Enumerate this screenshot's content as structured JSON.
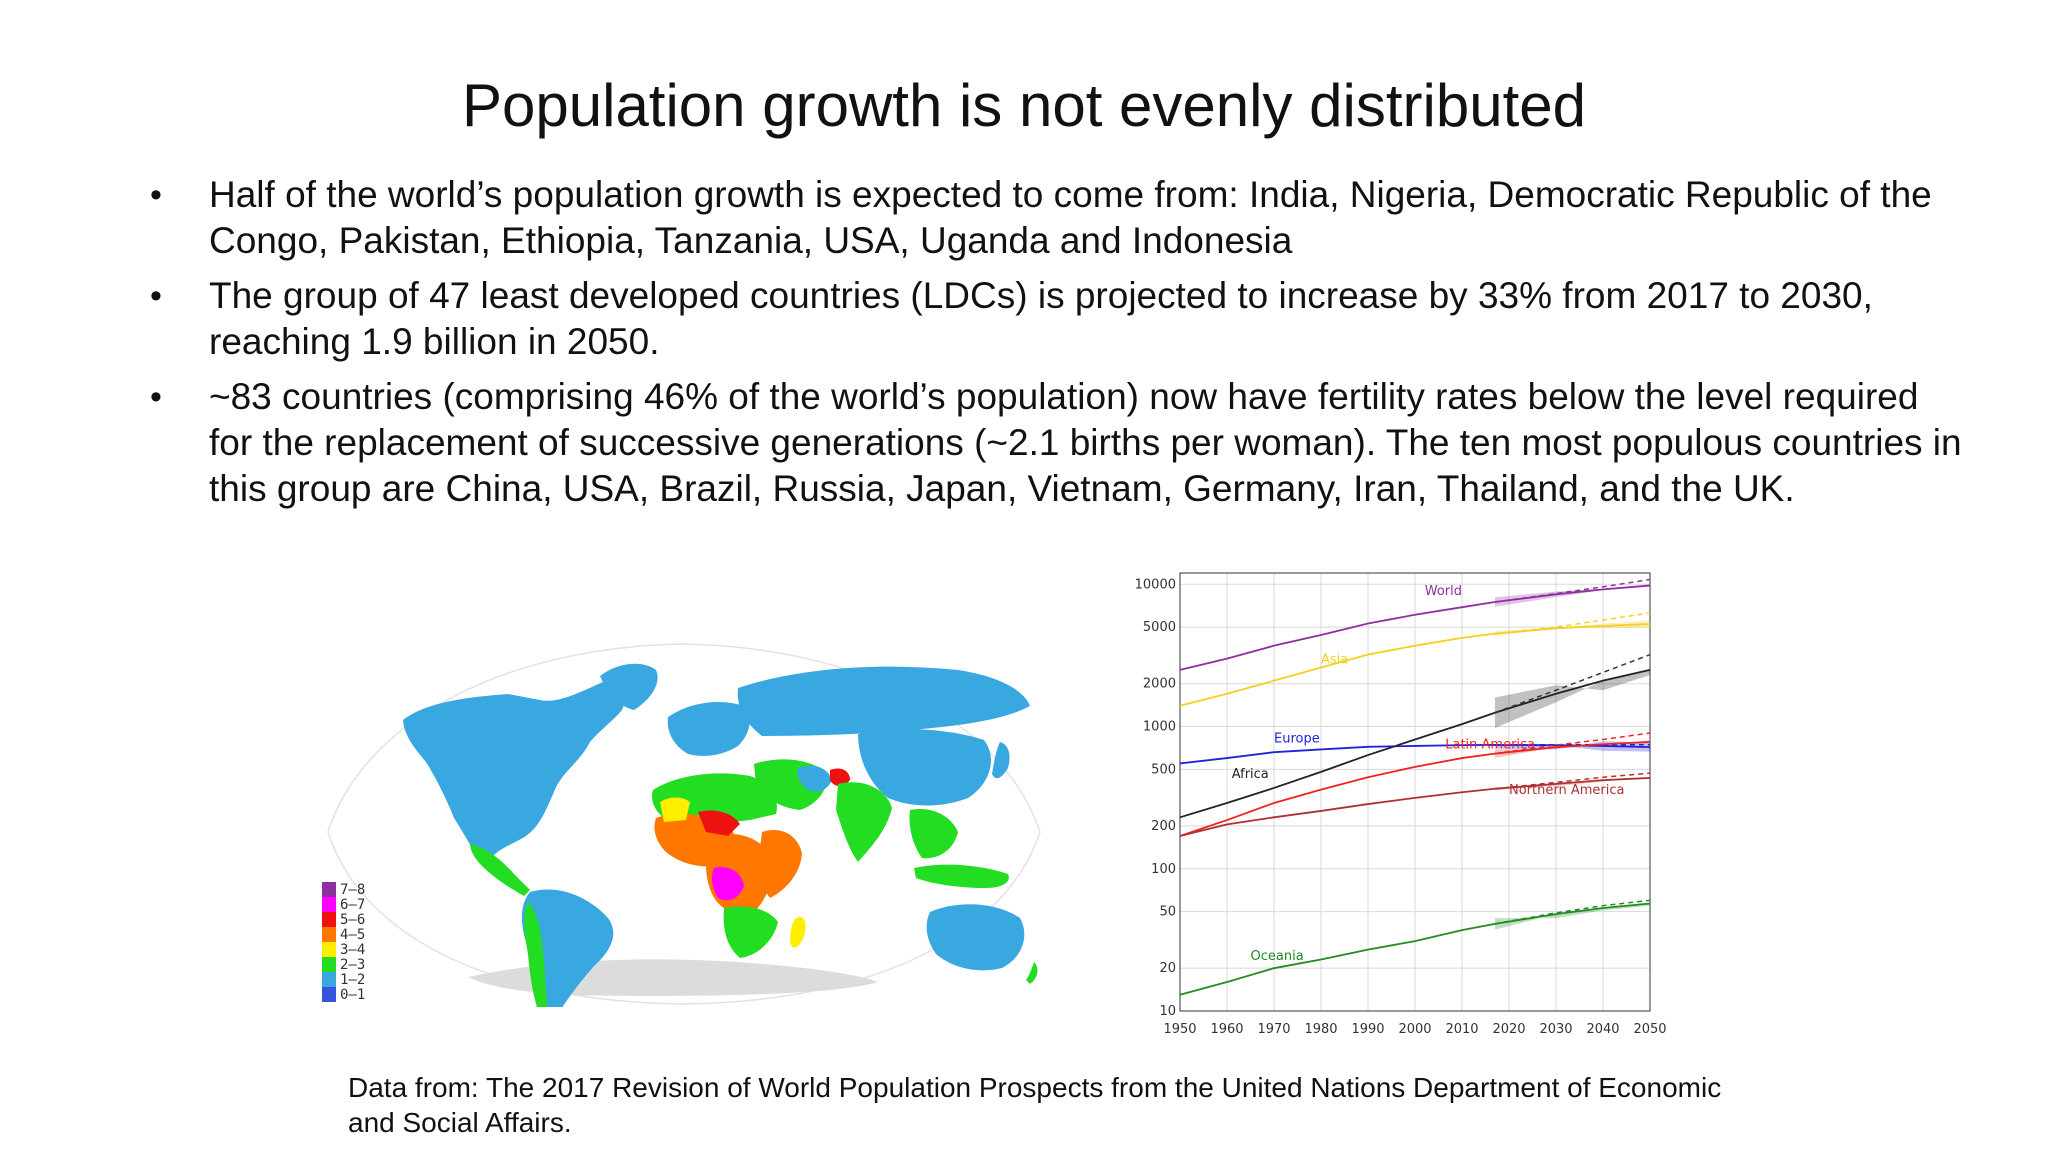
{
  "slide": {
    "title": "Population growth is not evenly distributed",
    "bullet_marker": "•",
    "bullets": [
      "Half of the world’s population growth is expected to come from: India, Nigeria, Democratic Republic of the Congo, Pakistan, Ethiopia, Tanzania, USA, Uganda and Indonesia",
      "The group of 47 least developed countries (LDCs) is projected to increase by 33% from 2017 to 2030, reaching 1.9 billion in 2050.",
      "~83 countries (comprising 46% of the world’s population) now have fertility rates below the level required for the replacement of successive generations (~2.1 births per woman). The ten most populous countries in this group are China, USA, Brazil, Russia, Japan, Vietnam, Germany, Iran, Thailand, and the UK."
    ],
    "footer": "Data from: The 2017 Revision of World Population Prospects from the United Nations Department of Economic and Social Affairs."
  },
  "map": {
    "legend": [
      {
        "label": "7–8",
        "color": "#8e2f9e"
      },
      {
        "label": "6–7",
        "color": "#ff00ff"
      },
      {
        "label": "5–6",
        "color": "#ee1111"
      },
      {
        "label": "4–5",
        "color": "#ff7700"
      },
      {
        "label": "3–4",
        "color": "#ffee00"
      },
      {
        "label": "2–3",
        "color": "#22dd22"
      },
      {
        "label": "1–2",
        "color": "#3aa8e0"
      },
      {
        "label": "0–1",
        "color": "#3355dd"
      }
    ]
  },
  "chart_data": {
    "type": "line",
    "yscale": "log",
    "xlim": [
      1950,
      2050
    ],
    "ylim": [
      10,
      12000
    ],
    "xticks": [
      "1950",
      "1960",
      "1970",
      "1980",
      "1990",
      "2000",
      "2010",
      "2020",
      "2030",
      "2040",
      "2050"
    ],
    "yticks": [
      "10",
      "20",
      "50",
      "100",
      "200",
      "500",
      "1000",
      "2000",
      "5000",
      "10000"
    ],
    "series": [
      {
        "name": "World",
        "color": "#8e2f9e",
        "x": [
          1950,
          1960,
          1970,
          1980,
          1990,
          2000,
          2010,
          2017,
          2030,
          2040,
          2050
        ],
        "y": [
          2500,
          3000,
          3700,
          4400,
          5300,
          6100,
          6900,
          7500,
          8500,
          9200,
          9800
        ],
        "band": [
          8100,
          8900,
          9300,
          10000,
          10600
        ],
        "proj": [
          8600,
          9600,
          10800
        ]
      },
      {
        "name": "Asia",
        "color": "#f5d020",
        "x": [
          1950,
          1960,
          1970,
          1980,
          1990,
          2000,
          2010,
          2017,
          2030,
          2040,
          2050
        ],
        "y": [
          1400,
          1700,
          2100,
          2600,
          3200,
          3700,
          4200,
          4500,
          4900,
          5100,
          5250
        ],
        "band": [
          4700,
          4900,
          5300,
          5600,
          6000
        ],
        "proj": [
          5000,
          5600,
          6300
        ]
      },
      {
        "name": "Europe",
        "color": "#2222dd",
        "x": [
          1950,
          1960,
          1970,
          1980,
          1990,
          2000,
          2010,
          2017,
          2030,
          2040,
          2050
        ],
        "y": [
          550,
          600,
          660,
          690,
          720,
          730,
          740,
          742,
          739,
          730,
          716
        ],
        "band": [
          700,
          690,
          790,
          770,
          750
        ],
        "proj": [
          745,
          745,
          745
        ]
      },
      {
        "name": "Africa",
        "color": "#222222",
        "x": [
          1950,
          1960,
          1970,
          1980,
          1990,
          2000,
          2010,
          2017,
          2030,
          2040,
          2050
        ],
        "y": [
          230,
          290,
          370,
          480,
          630,
          810,
          1040,
          1250,
          1700,
          2100,
          2500
        ],
        "band": [
          1600,
          1950,
          1800,
          2300,
          2800
        ],
        "proj": [
          1800,
          2400,
          3200
        ]
      },
      {
        "name": "Latin America",
        "color": "#ee2222",
        "x": [
          1950,
          1960,
          1970,
          1980,
          1990,
          2000,
          2010,
          2017,
          2030,
          2040,
          2050
        ],
        "y": [
          170,
          220,
          290,
          360,
          440,
          520,
          600,
          645,
          715,
          750,
          780
        ],
        "band": [
          690,
          700,
          740,
          800,
          880
        ],
        "proj": [
          740,
          810,
          900
        ]
      },
      {
        "name": "Northern America",
        "color": "#b03030",
        "x": [
          1950,
          1960,
          1970,
          1980,
          1990,
          2000,
          2010,
          2017,
          2030,
          2040,
          2050
        ],
        "y": [
          170,
          205,
          230,
          255,
          285,
          315,
          345,
          365,
          395,
          420,
          435
        ],
        "band": [
          375,
          380,
          410,
          440,
          475
        ],
        "proj": [
          405,
          440,
          470
        ]
      },
      {
        "name": "Oceania",
        "color": "#228b22",
        "x": [
          1950,
          1960,
          1970,
          1980,
          1990,
          2000,
          2010,
          2017,
          2030,
          2040,
          2050
        ],
        "y": [
          13,
          16,
          20,
          23,
          27,
          31,
          37,
          41,
          48,
          53,
          57
        ],
        "band": [
          45,
          45,
          51,
          55,
          62
        ],
        "proj": [
          49,
          55,
          60
        ]
      }
    ]
  }
}
